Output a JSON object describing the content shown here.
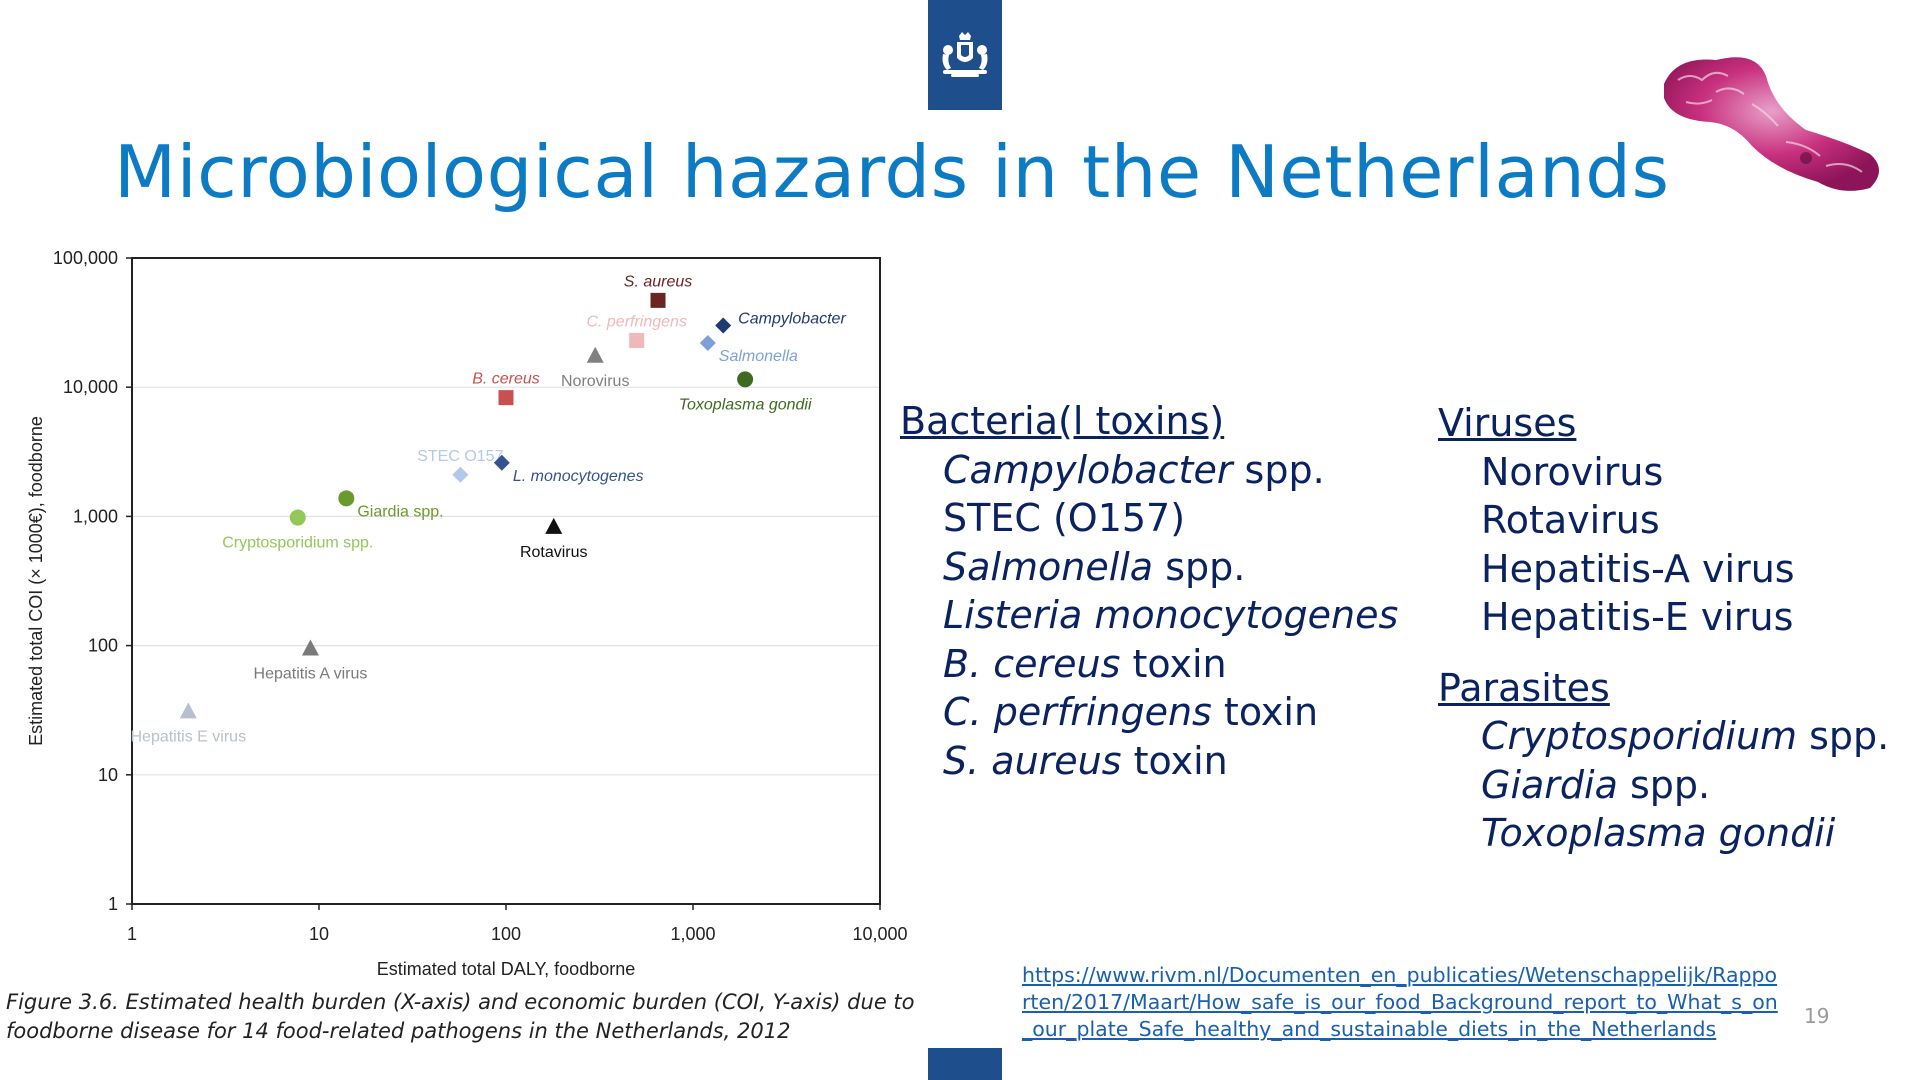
{
  "slide": {
    "title": "Microbiological hazards in the Netherlands",
    "caption": "Figure 3.6. Estimated health burden (X-axis) and economic burden (COI, Y-axis) due to foodborne disease for 14 food-related pathogens in the Netherlands, 2012",
    "url": "https://www.rivm.nl/Documenten_en_publicaties/Wetenschappelijk/Rapporten/2017/Maart/How_safe_is_our_food_Background_report_to_What_s_on_our_plate_Safe_healthy_and_sustainable_diets_in_the_Netherlands",
    "page_number": "19",
    "logo_icon": "royal-coat-of-arms-icon",
    "image_icon": "microbe-illustration-icon",
    "brand_color": "#1f4e8c",
    "title_color": "#0d7bc4"
  },
  "lists": {
    "bacteria": {
      "heading": "Bacteria(l toxins)",
      "items": [
        {
          "italic": "Campylobacter",
          "plain": " spp."
        },
        {
          "italic": "",
          "plain": "STEC (O157)"
        },
        {
          "italic": "Salmonella",
          "plain": " spp."
        },
        {
          "italic": "Listeria monocytogenes",
          "plain": ""
        },
        {
          "italic": "B. cereus",
          "plain": " toxin"
        },
        {
          "italic": "C. perfringens",
          "plain": " toxin"
        },
        {
          "italic": "S. aureus",
          "plain": " toxin"
        }
      ]
    },
    "viruses": {
      "heading": "Viruses",
      "items": [
        "Norovirus",
        "Rotavirus",
        "Hepatitis-A virus",
        "Hepatitis-E virus"
      ]
    },
    "parasites": {
      "heading": "Parasites",
      "items": [
        {
          "italic": "Cryptosporidium",
          "plain": " spp."
        },
        {
          "italic": "Giardia",
          "plain": " spp."
        },
        {
          "italic": "Toxoplasma gondii",
          "plain": ""
        }
      ]
    }
  },
  "chart_data": {
    "type": "scatter",
    "xlabel": "Estimated  total DALY, foodborne",
    "ylabel": "Estimated  total COI (× 1000€), foodborne",
    "x_scale": "log",
    "y_scale": "log",
    "xlim": [
      1,
      10000
    ],
    "ylim": [
      1,
      100000
    ],
    "x_ticks": [
      {
        "value": 1,
        "label": "1"
      },
      {
        "value": 10,
        "label": "10"
      },
      {
        "value": 100,
        "label": "100"
      },
      {
        "value": 1000,
        "label": "1,000"
      },
      {
        "value": 10000,
        "label": "10,000"
      }
    ],
    "y_ticks": [
      {
        "value": 1,
        "label": "1"
      },
      {
        "value": 10,
        "label": "10"
      },
      {
        "value": 100,
        "label": "100"
      },
      {
        "value": 1000,
        "label": "1,000"
      },
      {
        "value": 10000,
        "label": "10,000"
      },
      {
        "value": 100000,
        "label": "100,000"
      }
    ],
    "grid": "horizontal",
    "points": [
      {
        "label": "S. aureus",
        "italic": true,
        "x": 650,
        "y": 47000,
        "marker": "square",
        "color": "#6b2424",
        "label_pos": "above"
      },
      {
        "label": "C. perfringens",
        "italic": true,
        "x": 500,
        "y": 23000,
        "marker": "square",
        "color": "#f0b8b8",
        "label_pos": "above"
      },
      {
        "label": "Campylobacter",
        "italic": true,
        "x": 1450,
        "y": 30000,
        "marker": "diamond",
        "color": "#203a70",
        "label_pos": "right"
      },
      {
        "label": "Salmonella",
        "italic": true,
        "x": 1200,
        "y": 22000,
        "marker": "diamond",
        "color": "#7ea0d8",
        "label_pos": "below-right"
      },
      {
        "label": "Norovirus",
        "italic": false,
        "x": 300,
        "y": 17500,
        "marker": "triangle",
        "color": "#808080",
        "label_pos": "below"
      },
      {
        "label": "Toxoplasma gondii",
        "italic": true,
        "x": 1900,
        "y": 11500,
        "marker": "circle",
        "color": "#3d6b1f",
        "label_pos": "below"
      },
      {
        "label": "B. cereus",
        "italic": true,
        "x": 100,
        "y": 8300,
        "marker": "square",
        "color": "#c85050",
        "label_pos": "above"
      },
      {
        "label": "STEC O157",
        "italic": false,
        "x": 57,
        "y": 2100,
        "marker": "diamond",
        "color": "#b4c8ec",
        "label_pos": "above"
      },
      {
        "label": "L. monocytogenes",
        "italic": true,
        "x": 95,
        "y": 2600,
        "marker": "diamond",
        "color": "#34528f",
        "label_pos": "below-right"
      },
      {
        "label": "Giardia spp.",
        "italic": false,
        "x": 14,
        "y": 1380,
        "marker": "circle",
        "color": "#6a9a2e",
        "label_pos": "below-right"
      },
      {
        "label": "Cryptosporidium spp.",
        "italic": false,
        "x": 7.7,
        "y": 980,
        "marker": "circle",
        "color": "#92c85a",
        "label_pos": "below"
      },
      {
        "label": "Rotavirus",
        "italic": false,
        "x": 180,
        "y": 830,
        "marker": "triangle",
        "color": "#111111",
        "label_pos": "below"
      },
      {
        "label": "Hepatitis A virus",
        "italic": false,
        "x": 9,
        "y": 95,
        "marker": "triangle",
        "color": "#7a7a7a",
        "label_pos": "below"
      },
      {
        "label": "Hepatitis E virus",
        "italic": false,
        "x": 2,
        "y": 31,
        "marker": "triangle",
        "color": "#b8bfd0",
        "label_pos": "below"
      }
    ]
  }
}
